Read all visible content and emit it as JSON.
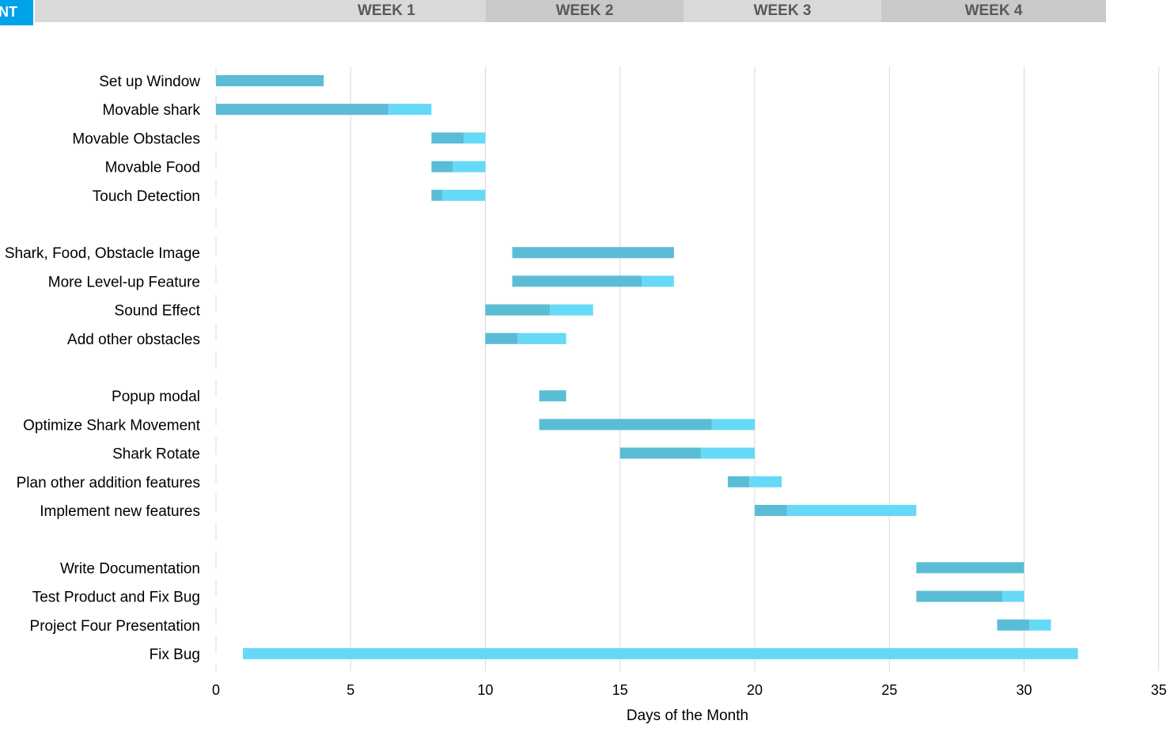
{
  "header": {
    "tag_text": "NT",
    "weeks": [
      "WEEK 1",
      "WEEK 2",
      "WEEK 3",
      "WEEK 4"
    ],
    "week_colors": [
      "#d9d9d9",
      "#c9c9c9",
      "#d9d9d9",
      "#c9c9c9"
    ]
  },
  "colors": {
    "done": "#5bbcd6",
    "remaining": "#66d9f7",
    "grid": "#d9d9d9",
    "accent": "#00a2e8"
  },
  "chart_data": {
    "type": "bar",
    "orientation": "horizontal-stacked",
    "xlabel": "Days of the Month",
    "xlim": [
      0,
      35
    ],
    "xticks": [
      0,
      5,
      10,
      15,
      20,
      25,
      30,
      35
    ],
    "grid": "vertical",
    "series": [
      {
        "name": "",
        "role": "completed"
      },
      {
        "name": "",
        "role": "remaining"
      }
    ],
    "tasks": [
      {
        "label": "Set up Window",
        "start": 0,
        "done": 4,
        "remaining": 0
      },
      {
        "label": "Movable shark",
        "start": 0,
        "done": 6.4,
        "remaining": 1.6
      },
      {
        "label": "Movable Obstacles",
        "start": 8,
        "done": 1.2,
        "remaining": 0.8
      },
      {
        "label": "Movable Food",
        "start": 8,
        "done": 0.8,
        "remaining": 1.2
      },
      {
        "label": "Touch Detection",
        "start": 8,
        "done": 0.4,
        "remaining": 1.6
      },
      {
        "label": "",
        "start": null,
        "done": 0,
        "remaining": 0
      },
      {
        "label": "Shark, Food, Obstacle Image",
        "start": 11,
        "done": 6,
        "remaining": 0
      },
      {
        "label": "More Level-up Feature",
        "start": 11,
        "done": 4.8,
        "remaining": 1.2
      },
      {
        "label": "Sound Effect",
        "start": 10,
        "done": 2.4,
        "remaining": 1.6
      },
      {
        "label": "Add other obstacles",
        "start": 10,
        "done": 1.2,
        "remaining": 1.8
      },
      {
        "label": "",
        "start": null,
        "done": 0,
        "remaining": 0
      },
      {
        "label": "Popup modal",
        "start": 12,
        "done": 1,
        "remaining": 0
      },
      {
        "label": "Optimize Shark Movement",
        "start": 12,
        "done": 6.4,
        "remaining": 1.6
      },
      {
        "label": "Shark Rotate",
        "start": 15,
        "done": 3,
        "remaining": 2
      },
      {
        "label": "Plan other addition features",
        "start": 19,
        "done": 0.8,
        "remaining": 1.2
      },
      {
        "label": "Implement new features",
        "start": 20,
        "done": 1.2,
        "remaining": 4.8
      },
      {
        "label": "",
        "start": null,
        "done": 0,
        "remaining": 0
      },
      {
        "label": "Write Documentation",
        "start": 26,
        "done": 4,
        "remaining": 0
      },
      {
        "label": "Test Product and Fix Bug",
        "start": 26,
        "done": 3.2,
        "remaining": 0.8
      },
      {
        "label": "Project Four Presentation",
        "start": 29,
        "done": 1.2,
        "remaining": 0.8
      },
      {
        "label": "Fix Bug",
        "start": 1,
        "done": 0,
        "remaining": 31
      }
    ]
  }
}
